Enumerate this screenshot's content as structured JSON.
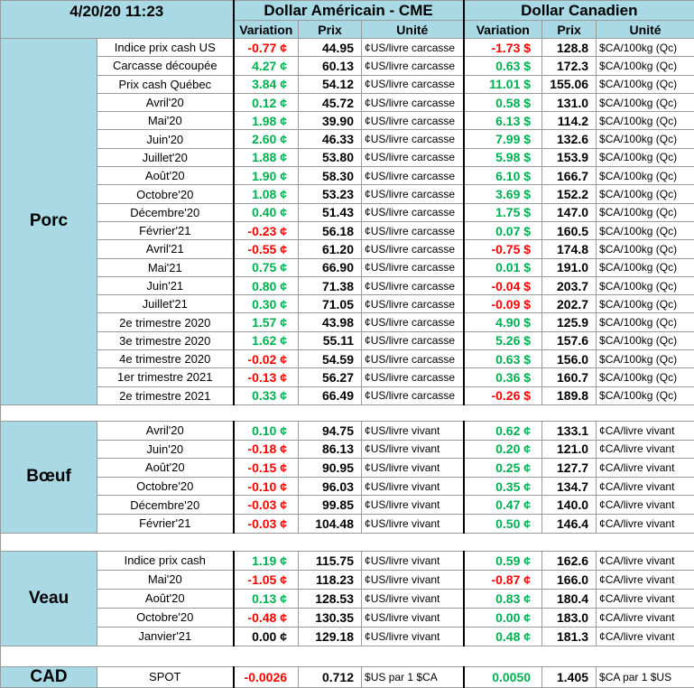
{
  "header": {
    "timestamp": "4/20/20 11:23",
    "currencies": [
      "Dollar Américain - CME",
      "Dollar Canadien"
    ],
    "columns": [
      "Variation",
      "Prix",
      "Unité",
      "Variation",
      "Prix",
      "Unité"
    ]
  },
  "palette": {
    "u": "#00b050",
    "d": "#ff0000",
    "f": "#000000"
  },
  "groups": [
    {
      "name": "Porc",
      "rows": [
        [
          "Indice prix cash US",
          "-0.77 ¢",
          "44.95",
          "¢US/livre carcasse",
          "-1.73 $",
          "128.8",
          "$CA/100kg (Qc)"
        ],
        [
          "Carcasse découpée",
          "4.27 ¢",
          "60.13",
          "¢US/livre carcasse",
          "0.63 $",
          "172.3",
          "$CA/100kg (Qc)"
        ],
        [
          "Prix cash Québec",
          "3.84 ¢",
          "54.12",
          "¢US/livre carcasse",
          "11.01 $",
          "155.06",
          "$CA/100kg (Qc)"
        ],
        [
          "Avril'20",
          "0.12 ¢",
          "45.72",
          "¢US/livre carcasse",
          "0.58 $",
          "131.0",
          "$CA/100kg (Qc)"
        ],
        [
          "Mai'20",
          "1.98 ¢",
          "39.90",
          "¢US/livre carcasse",
          "6.13 $",
          "114.2",
          "$CA/100kg (Qc)"
        ],
        [
          "Juin'20",
          "2.60 ¢",
          "46.33",
          "¢US/livre carcasse",
          "7.99 $",
          "132.6",
          "$CA/100kg (Qc)"
        ],
        [
          "Juillet'20",
          "1.88 ¢",
          "53.80",
          "¢US/livre carcasse",
          "5.98 $",
          "153.9",
          "$CA/100kg (Qc)"
        ],
        [
          "Août'20",
          "1.90 ¢",
          "58.30",
          "¢US/livre carcasse",
          "6.10 $",
          "166.7",
          "$CA/100kg (Qc)"
        ],
        [
          "Octobre'20",
          "1.08 ¢",
          "53.23",
          "¢US/livre carcasse",
          "3.69 $",
          "152.2",
          "$CA/100kg (Qc)"
        ],
        [
          "Décembre'20",
          "0.40 ¢",
          "51.43",
          "¢US/livre carcasse",
          "1.75 $",
          "147.0",
          "$CA/100kg (Qc)"
        ],
        [
          "Février'21",
          "-0.23 ¢",
          "56.18",
          "¢US/livre carcasse",
          "0.07 $",
          "160.5",
          "$CA/100kg (Qc)"
        ],
        [
          "Avril'21",
          "-0.55 ¢",
          "61.20",
          "¢US/livre carcasse",
          "-0.75 $",
          "174.8",
          "$CA/100kg (Qc)"
        ],
        [
          "Mai'21",
          "0.75 ¢",
          "66.90",
          "¢US/livre carcasse",
          "0.01 $",
          "191.0",
          "$CA/100kg (Qc)"
        ],
        [
          "Juin'21",
          "0.80 ¢",
          "71.38",
          "¢US/livre carcasse",
          "-0.04 $",
          "203.7",
          "$CA/100kg (Qc)"
        ],
        [
          "Juillet'21",
          "0.30 ¢",
          "71.05",
          "¢US/livre carcasse",
          "-0.09 $",
          "202.7",
          "$CA/100kg (Qc)"
        ],
        [
          "2e trimestre 2020",
          "1.57 ¢",
          "43.98",
          "¢US/livre carcasse",
          "4.90 $",
          "125.9",
          "$CA/100kg (Qc)"
        ],
        [
          "3e trimestre 2020",
          "1.62 ¢",
          "55.11",
          "¢US/livre carcasse",
          "5.26 $",
          "157.6",
          "$CA/100kg (Qc)"
        ],
        [
          "4e trimestre 2020",
          "-0.02 ¢",
          "54.59",
          "¢US/livre carcasse",
          "0.63 $",
          "156.0",
          "$CA/100kg (Qc)"
        ],
        [
          "1er trimestre 2021",
          "-0.13 ¢",
          "56.27",
          "¢US/livre carcasse",
          "0.36 $",
          "160.7",
          "$CA/100kg (Qc)"
        ],
        [
          "2e trimestre 2021",
          "0.33 ¢",
          "66.49",
          "¢US/livre carcasse",
          "-0.26 $",
          "189.8",
          "$CA/100kg (Qc)"
        ]
      ],
      "trends": [
        "dd",
        "uu",
        "uu",
        "uu",
        "uu",
        "uu",
        "uu",
        "uu",
        "uu",
        "uu",
        "du",
        "dd",
        "uu",
        "ud",
        "ud",
        "uu",
        "uu",
        "du",
        "du",
        "ud"
      ]
    },
    {
      "name": "Bœuf",
      "rows": [
        [
          "Avril'20",
          "0.10 ¢",
          "94.75",
          "¢US/livre vivant",
          "0.62 ¢",
          "133.1",
          "¢CA/livre vivant"
        ],
        [
          "Juin'20",
          "-0.18 ¢",
          "86.13",
          "¢US/livre vivant",
          "0.20 ¢",
          "121.0",
          "¢CA/livre vivant"
        ],
        [
          "Août'20",
          "-0.15 ¢",
          "90.95",
          "¢US/livre vivant",
          "0.25 ¢",
          "127.7",
          "¢CA/livre vivant"
        ],
        [
          "Octobre'20",
          "-0.10 ¢",
          "96.03",
          "¢US/livre vivant",
          "0.35 ¢",
          "134.7",
          "¢CA/livre vivant"
        ],
        [
          "Décembre'20",
          "-0.03 ¢",
          "99.85",
          "¢US/livre vivant",
          "0.47 ¢",
          "140.0",
          "¢CA/livre vivant"
        ],
        [
          "Février'21",
          "-0.03 ¢",
          "104.48",
          "¢US/livre vivant",
          "0.50 ¢",
          "146.4",
          "¢CA/livre vivant"
        ]
      ],
      "trends": [
        "uu",
        "du",
        "du",
        "du",
        "du",
        "du"
      ]
    },
    {
      "name": "Veau",
      "rows": [
        [
          "Indice prix cash",
          "1.19 ¢",
          "115.75",
          "¢US/livre vivant",
          "0.59 ¢",
          "162.6",
          "¢CA/livre vivant"
        ],
        [
          "Mai'20",
          "-1.05 ¢",
          "118.23",
          "¢US/livre vivant",
          "-0.87 ¢",
          "166.0",
          "¢CA/livre vivant"
        ],
        [
          "Août'20",
          "0.13 ¢",
          "128.53",
          "¢US/livre vivant",
          "0.83 ¢",
          "180.4",
          "¢CA/livre vivant"
        ],
        [
          "Octobre'20",
          "-0.48 ¢",
          "130.35",
          "¢US/livre vivant",
          "0.00 ¢",
          "183.0",
          "¢CA/livre vivant"
        ],
        [
          "Janvier'21",
          "0.00 ¢",
          "129.18",
          "¢US/livre vivant",
          "0.48 ¢",
          "181.3",
          "¢CA/livre vivant"
        ]
      ],
      "trends": [
        "uu",
        "dd",
        "uu",
        "du",
        "fu"
      ]
    },
    {
      "name": "CAD",
      "rows": [
        [
          "SPOT",
          "-0.0026",
          "0.712",
          "$US par 1 $CA",
          "0.0050",
          "1.405",
          "$CA par 1 $US"
        ]
      ],
      "trends": [
        "du"
      ]
    }
  ]
}
